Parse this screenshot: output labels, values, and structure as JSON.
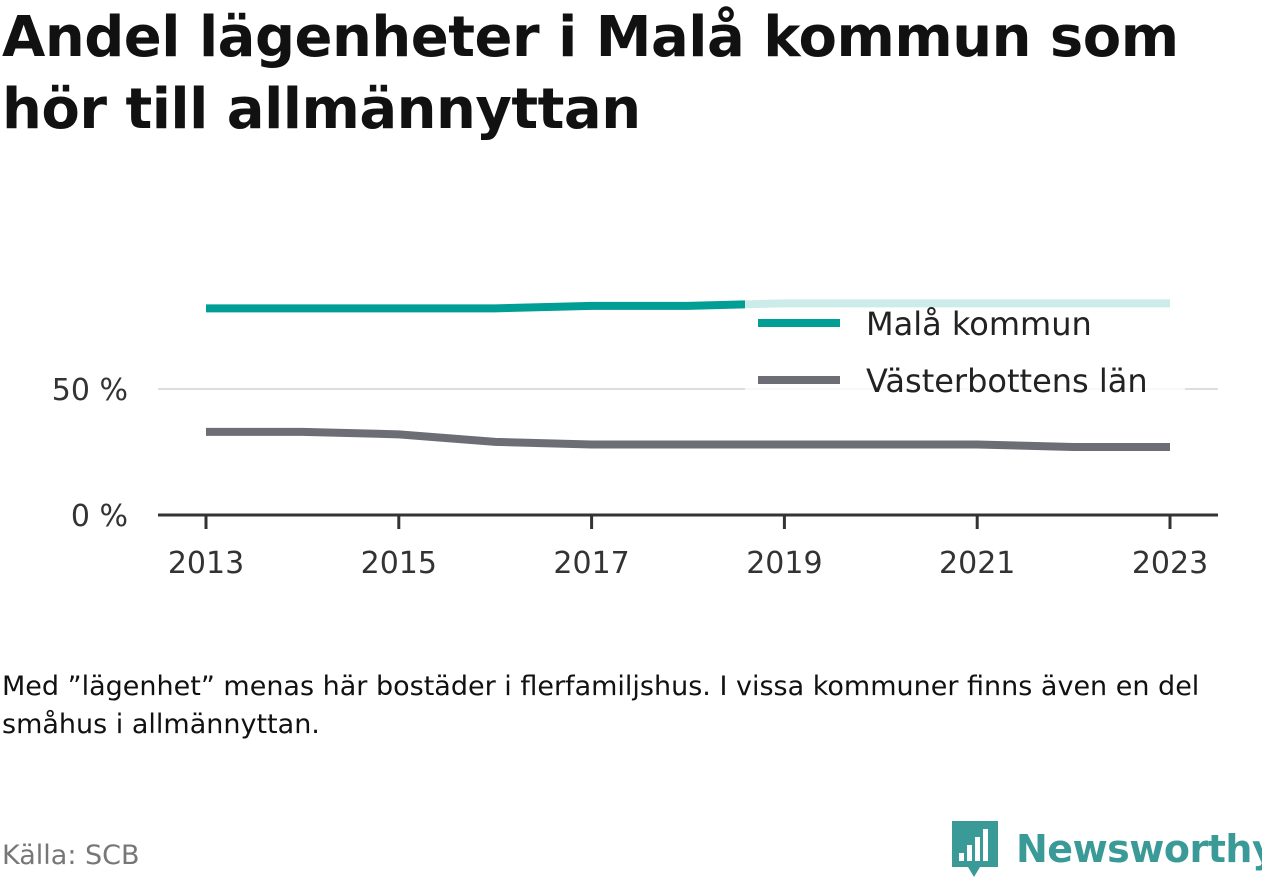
{
  "title": "Andel lägenheter i Malå kommun som hör till allmännyttan",
  "note": "Med ”lägenhet” menas här bostäder i flerfamiljshus. I vissa kommuner finns även en del småhus i allmännyttan.",
  "source": "Källa: SCB",
  "brand": {
    "name": "Newsworthy",
    "icon": "bar-chart-speech-bubble-icon",
    "color": "#3a9a98"
  },
  "chart_data": {
    "type": "line",
    "x": [
      2013,
      2014,
      2015,
      2016,
      2017,
      2018,
      2019,
      2020,
      2021,
      2022,
      2023
    ],
    "x_ticks": [
      "2013",
      "2015",
      "2017",
      "2019",
      "2021",
      "2023"
    ],
    "y_ticks": [
      "0 %",
      "50 %"
    ],
    "ylim": [
      0,
      100
    ],
    "grid": true,
    "legend_position": "top-right",
    "series": [
      {
        "name": "Malå kommun",
        "color": "#009e94",
        "values": [
          82,
          82,
          82,
          82,
          83,
          83,
          84,
          84,
          84,
          84,
          84
        ]
      },
      {
        "name": "Västerbottens län",
        "color": "#6d6d75",
        "values": [
          33,
          33,
          32,
          29,
          28,
          28,
          28,
          28,
          28,
          27,
          27
        ]
      }
    ]
  }
}
